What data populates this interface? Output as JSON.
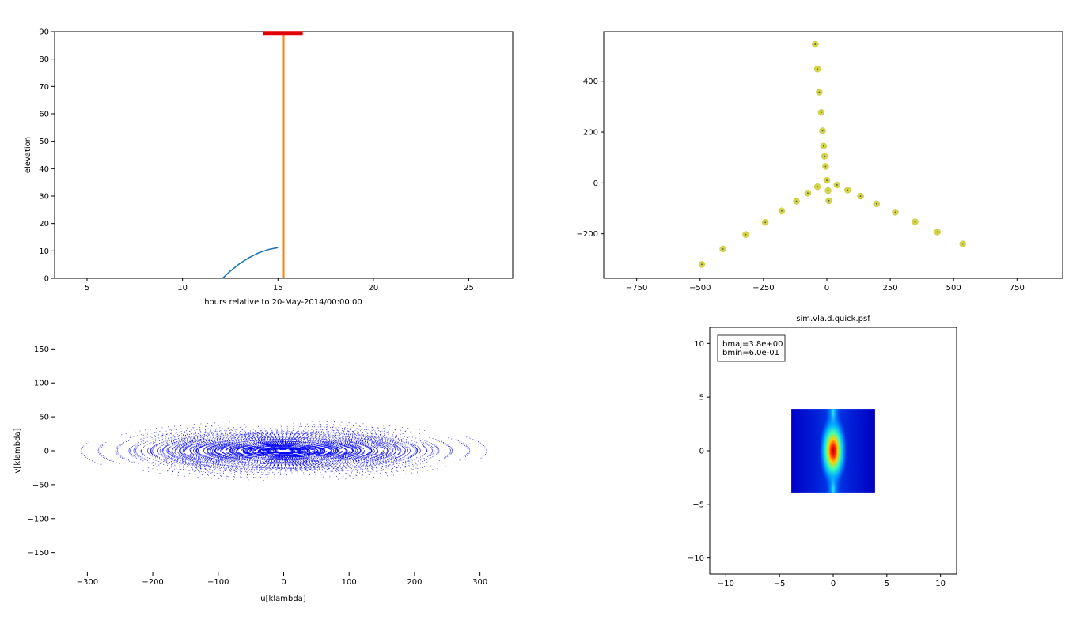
{
  "chart_data": [
    {
      "id": "elevation",
      "type": "line",
      "xlabel": "hours relative to 20-May-2014/00:00:00",
      "ylabel": "elevation",
      "xlim": [
        3.3,
        27.3
      ],
      "ylim": [
        0,
        90
      ],
      "xticks": [
        "5",
        "10",
        "15",
        "20",
        "25"
      ],
      "yticks": [
        "0",
        "10",
        "20",
        "30",
        "40",
        "50",
        "60",
        "70",
        "80",
        "90"
      ],
      "series": [
        {
          "color": "#1f77b4",
          "x": [
            12.1,
            12.5,
            13.0,
            13.5,
            14.0,
            14.5,
            15.0
          ],
          "y": [
            0,
            2.6,
            5.4,
            7.6,
            9.3,
            10.5,
            11.2
          ]
        }
      ],
      "vline": {
        "x": 15.3,
        "color": "#ff7f0e"
      },
      "topbar": {
        "x": [
          14.2,
          16.3
        ],
        "y": 89.5,
        "color": "#e00000"
      },
      "grid": false
    },
    {
      "id": "antenna-layout",
      "type": "scatter",
      "xlim": [
        -880,
        930
      ],
      "ylim": [
        -375,
        595
      ],
      "xticks": [
        "−750",
        "−500",
        "−250",
        "0",
        "250",
        "500",
        "750"
      ],
      "yticks": [
        "−200",
        "0",
        "200",
        "400"
      ],
      "marker_color": "#d4d44a",
      "points": [
        [
          -46,
          545
        ],
        [
          -37,
          448
        ],
        [
          -30,
          357
        ],
        [
          -22,
          277
        ],
        [
          -17,
          205
        ],
        [
          -13,
          145
        ],
        [
          -9,
          105
        ],
        [
          -5,
          65
        ],
        [
          0,
          10
        ],
        [
          -37,
          -15
        ],
        [
          5,
          -30
        ],
        [
          40,
          -8
        ],
        [
          82,
          -28
        ],
        [
          133,
          -52
        ],
        [
          -75,
          -40
        ],
        [
          196,
          -82
        ],
        [
          -120,
          -72
        ],
        [
          8,
          -70
        ],
        [
          -178,
          -110
        ],
        [
          270,
          -115
        ],
        [
          -243,
          -155
        ],
        [
          348,
          -153
        ],
        [
          -320,
          -203
        ],
        [
          436,
          -193
        ],
        [
          -410,
          -260
        ],
        [
          536,
          -240
        ],
        [
          -493,
          -320
        ]
      ],
      "grid": false
    },
    {
      "id": "uv-coverage",
      "type": "scatter",
      "xlabel": "u[klambda]",
      "ylabel": "v[klambda]",
      "xlim": [
        -350,
        350
      ],
      "ylim": [
        -190,
        190
      ],
      "xticks": [
        "−300",
        "−200",
        "−100",
        "0",
        "100",
        "200",
        "300"
      ],
      "yticks": [
        "−150",
        "−100",
        "−50",
        "0",
        "50",
        "100",
        "150"
      ],
      "marker_color": "#0000ff",
      "grid": false
    },
    {
      "id": "psf",
      "type": "heatmap",
      "title": "sim.vla.d.quick.psf",
      "xlim": [
        -11.5,
        11.5
      ],
      "ylim": [
        -11.5,
        11.5
      ],
      "xticks": [
        "−10",
        "−5",
        "0",
        "5",
        "10"
      ],
      "yticks": [
        "−10",
        "−5",
        "0",
        "5",
        "10"
      ],
      "extent": [
        -3.9,
        3.9,
        -3.9,
        3.9
      ],
      "legend": "upper left",
      "legend_lines": [
        "bmaj=3.8e+00",
        "bmin=6.0e-01"
      ],
      "bmaj": 3.8,
      "bmin": 0.6
    }
  ]
}
